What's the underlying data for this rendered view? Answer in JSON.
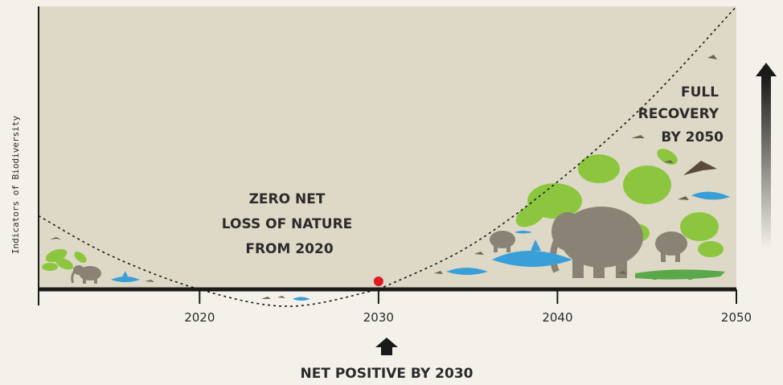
{
  "chart_data": {
    "type": "line",
    "xlabel": "",
    "ylabel": "Indicators of Biodiversity",
    "xlim": [
      2011,
      2050
    ],
    "x_ticks": [
      "2020",
      "2030",
      "2040",
      "2050"
    ],
    "series": [
      {
        "x": [
          2011,
          2015,
          2020,
          2025,
          2030
        ],
        "y": [
          0.26,
          0.12,
          0.0,
          -0.06,
          0.0
        ]
      },
      {
        "x": [
          2030,
          2035,
          2040,
          2045,
          2050
        ],
        "y": [
          0.0,
          0.15,
          0.38,
          0.66,
          1.0
        ]
      }
    ],
    "marker": {
      "x": 2030,
      "y": 0.0
    },
    "annotations": {
      "zero_net": [
        "ZERO NET",
        "LOSS OF NATURE",
        "FROM 2020"
      ],
      "full_recovery": [
        "FULL",
        "RECOVERY",
        "BY 2050"
      ],
      "net_positive": "NET POSITIVE BY 2030"
    },
    "colors": {
      "plot_background": "#ddd9c6",
      "page_background": "#f4f1ea",
      "axis": "#1a1a1a",
      "marker": "#e01b24",
      "leaf_green": "#8cc63f",
      "elephant_gray": "#8a8274",
      "shark_blue": "#3a9fd8"
    },
    "icons": [
      "leaf-icon",
      "elephant-icon",
      "shark-icon",
      "crocodile-icon",
      "bird-icon",
      "up-arrow-icon",
      "gradient-arrow-icon"
    ]
  }
}
